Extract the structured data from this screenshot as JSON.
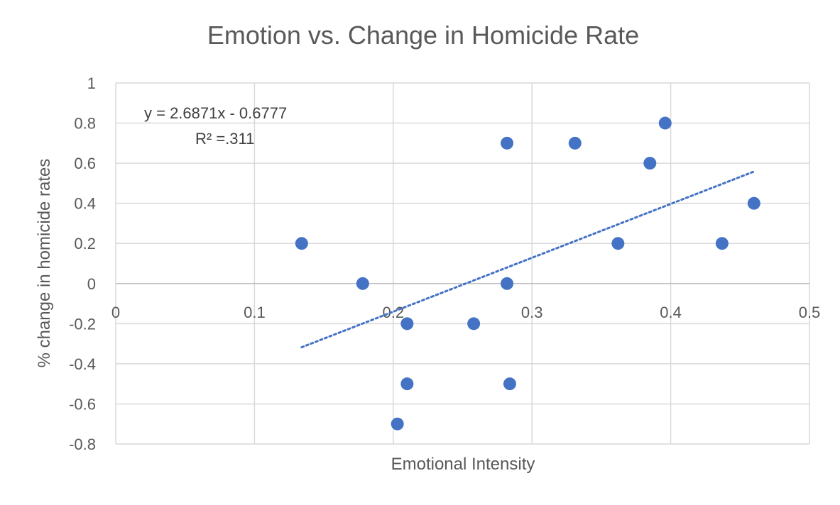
{
  "chart_data": {
    "type": "scatter",
    "title": "Emotion vs. Change in Homicide Rate",
    "xlabel": "Emotional Intensity",
    "ylabel": "% change in homicide rates",
    "xlim": [
      0,
      0.5
    ],
    "ylim": [
      -0.8,
      1
    ],
    "x_ticks": [
      0,
      0.1,
      0.2,
      0.3,
      0.4,
      0.5
    ],
    "x_tick_labels": [
      "0",
      "0.1",
      "0.2",
      "0.3",
      "0.4",
      "0.5"
    ],
    "y_ticks": [
      -0.8,
      -0.6,
      -0.4,
      -0.2,
      0,
      0.2,
      0.4,
      0.6,
      0.8,
      1
    ],
    "y_tick_labels": [
      "-0.8",
      "-0.6",
      "-0.4",
      "-0.2",
      "0",
      "0.2",
      "0.4",
      "0.6",
      "0.8",
      "1"
    ],
    "grid": true,
    "marker_color": "#4472C4",
    "points": [
      {
        "x": 0.134,
        "y": 0.2
      },
      {
        "x": 0.178,
        "y": 0.0
      },
      {
        "x": 0.203,
        "y": -0.7
      },
      {
        "x": 0.21,
        "y": -0.2
      },
      {
        "x": 0.21,
        "y": -0.5
      },
      {
        "x": 0.258,
        "y": -0.2
      },
      {
        "x": 0.282,
        "y": 0.7
      },
      {
        "x": 0.282,
        "y": 0.0
      },
      {
        "x": 0.284,
        "y": -0.5
      },
      {
        "x": 0.331,
        "y": 0.7
      },
      {
        "x": 0.362,
        "y": 0.2
      },
      {
        "x": 0.385,
        "y": 0.6
      },
      {
        "x": 0.396,
        "y": 0.8
      },
      {
        "x": 0.437,
        "y": 0.2
      },
      {
        "x": 0.46,
        "y": 0.4
      }
    ],
    "trendline": {
      "style": "dotted",
      "slope": 2.6871,
      "intercept": -0.6777,
      "x_range": [
        0.134,
        0.46
      ],
      "equation_label": "y = 2.6871x - 0.6777",
      "r2_label": "R² =.311"
    }
  }
}
